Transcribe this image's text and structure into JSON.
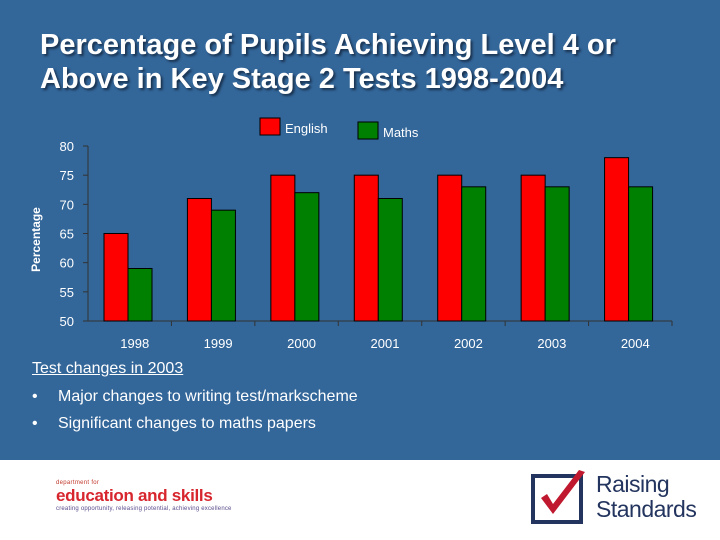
{
  "title": "Percentage of Pupils Achieving Level 4 or Above in Key Stage 2 Tests 1998-2004",
  "chart_data": {
    "type": "bar",
    "categories": [
      "1998",
      "1999",
      "2000",
      "2001",
      "2002",
      "2003",
      "2004"
    ],
    "series": [
      {
        "name": "English",
        "color": "#ff0000",
        "values": [
          65,
          71,
          75,
          75,
          75,
          75,
          78
        ]
      },
      {
        "name": "Maths",
        "color": "#008000",
        "values": [
          59,
          69,
          72,
          71,
          73,
          73,
          73
        ]
      }
    ],
    "ylabel": "Percentage",
    "xlabel": "",
    "ylim": [
      50,
      80
    ],
    "yticks": [
      50,
      55,
      60,
      65,
      70,
      75,
      80
    ],
    "legend": "top-center",
    "grid": false
  },
  "notes": {
    "heading": "Test changes in 2003",
    "bullet": "•",
    "items": [
      "Major changes to writing test/markscheme",
      "Significant changes to maths papers"
    ]
  },
  "footer": {
    "dfes": {
      "line1": "department for",
      "line2": "education and skills",
      "line3": "creating opportunity, releasing potential, achieving excellence"
    },
    "raising_standards": {
      "line1": "Raising",
      "line2": "Standards"
    },
    "logo_icon": "checkmark-box-icon"
  }
}
